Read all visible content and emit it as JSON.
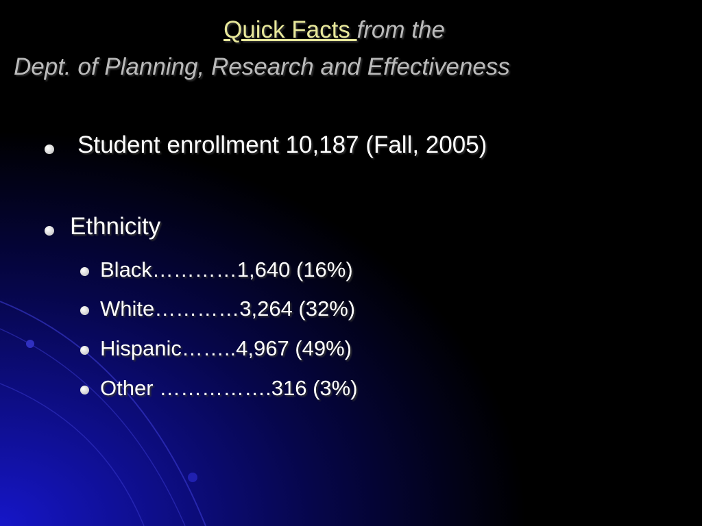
{
  "header": {
    "title_link": "Quick Facts ",
    "title_rest": "from the",
    "subtitle": "Dept. of Planning, Research and Effectiveness"
  },
  "bullets": [
    {
      "text": "Student enrollment 10,187 (Fall, 2005)"
    },
    {
      "text": "Ethnicity",
      "items": [
        "Black…………1,640 (16%)",
        "White…………3,264 (32%)",
        "Hispanic……..4,967 (49%)",
        "Other …………….316 (3%)"
      ]
    }
  ]
}
